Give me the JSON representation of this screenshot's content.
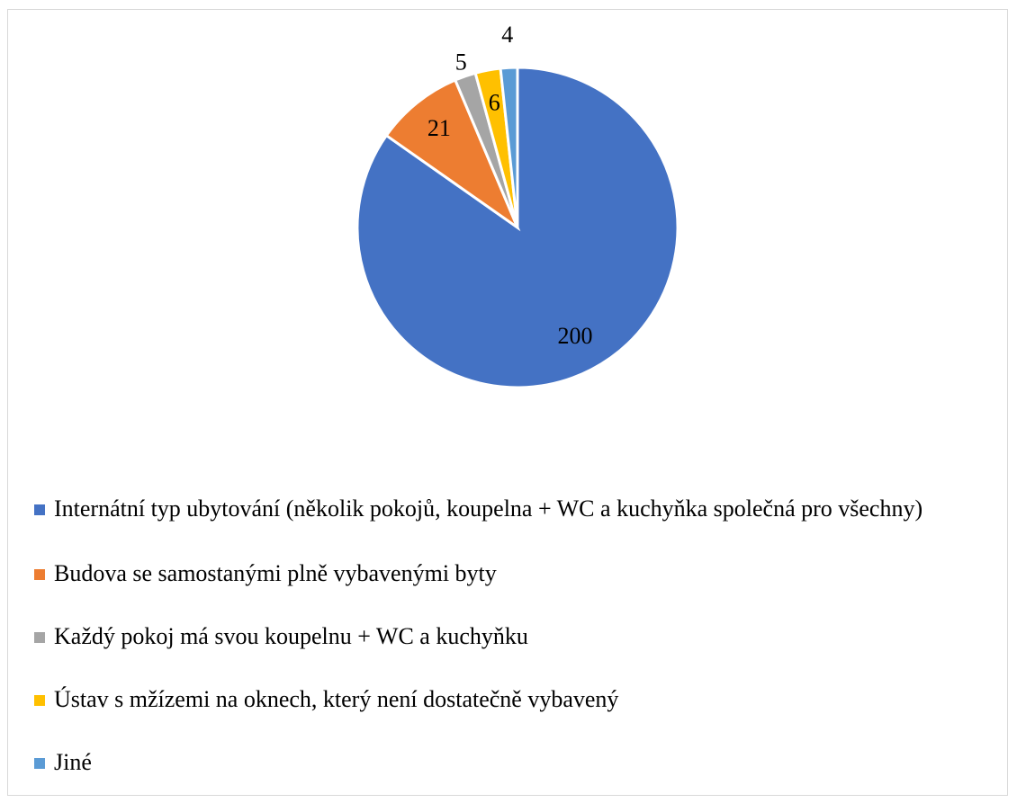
{
  "chart_data": {
    "type": "pie",
    "categories": [
      "Internátní typ ubytování (několik pokojů, koupelna + WC a kuchyňka společná pro všechny)",
      "Budova se samostanými plně vybavenými byty",
      "Každý pokoj má svou koupelnu + WC a kuchyňku",
      "Ústav s mžízemi na oknech, který není dostatečně vybavený",
      "Jiné"
    ],
    "values": [
      200,
      21,
      5,
      6,
      4
    ],
    "colors": [
      "#4472c4",
      "#ed7d31",
      "#a5a5a5",
      "#ffc000",
      "#5b9bd5"
    ],
    "legend": "bottom"
  }
}
